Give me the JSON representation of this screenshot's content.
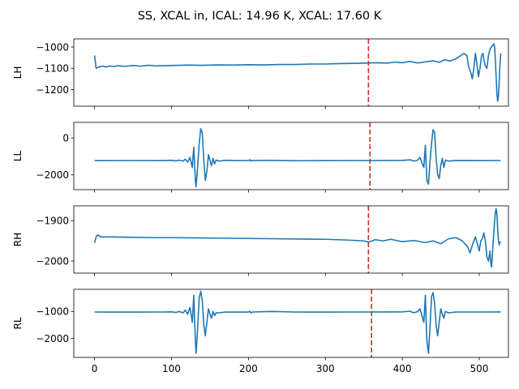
{
  "chart_data": {
    "type": "line",
    "title": "SS, XCAL in, ICAL: 14.96 K, XCAL: 17.60 K",
    "line_color": "#1f77b4",
    "marker_color": "#d62728",
    "xlim": [
      -27,
      538
    ],
    "x_ticks": [
      0,
      100,
      200,
      300,
      400,
      500
    ],
    "x_tick_labels": [
      "0",
      "100",
      "200",
      "300",
      "400",
      "500"
    ],
    "panels": [
      {
        "name": "LH",
        "ylabel": "LH",
        "ylim": [
          -1278,
          -962
        ],
        "y_ticks": [
          -1000,
          -1100,
          -1200
        ],
        "y_tick_labels": [
          "−1000",
          "−1100",
          "−1200"
        ],
        "marker_x": 356,
        "points": [
          [
            0,
            -1040
          ],
          [
            2,
            -1100
          ],
          [
            5,
            -1095
          ],
          [
            10,
            -1090
          ],
          [
            15,
            -1094
          ],
          [
            20,
            -1089
          ],
          [
            25,
            -1092
          ],
          [
            30,
            -1088
          ],
          [
            40,
            -1091
          ],
          [
            50,
            -1087
          ],
          [
            60,
            -1090
          ],
          [
            70,
            -1086
          ],
          [
            80,
            -1089
          ],
          [
            100,
            -1087
          ],
          [
            120,
            -1085
          ],
          [
            140,
            -1086
          ],
          [
            160,
            -1084
          ],
          [
            180,
            -1085
          ],
          [
            200,
            -1083
          ],
          [
            220,
            -1084
          ],
          [
            240,
            -1082
          ],
          [
            260,
            -1082
          ],
          [
            280,
            -1080
          ],
          [
            300,
            -1080
          ],
          [
            320,
            -1078
          ],
          [
            340,
            -1077
          ],
          [
            356,
            -1075
          ],
          [
            370,
            -1074
          ],
          [
            380,
            -1076
          ],
          [
            390,
            -1071
          ],
          [
            400,
            -1074
          ],
          [
            410,
            -1068
          ],
          [
            420,
            -1075
          ],
          [
            430,
            -1070
          ],
          [
            440,
            -1065
          ],
          [
            448,
            -1072
          ],
          [
            455,
            -1060
          ],
          [
            462,
            -1066
          ],
          [
            470,
            -1055
          ],
          [
            476,
            -1040
          ],
          [
            480,
            -1030
          ],
          [
            484,
            -1040
          ],
          [
            486,
            -1090
          ],
          [
            489,
            -1120
          ],
          [
            491,
            -1150
          ],
          [
            493,
            -1100
          ],
          [
            495,
            -1030
          ],
          [
            497,
            -1080
          ],
          [
            499,
            -1140
          ],
          [
            501,
            -1100
          ],
          [
            503,
            -1040
          ],
          [
            505,
            -1030
          ],
          [
            506,
            -1060
          ],
          [
            508,
            -1090
          ],
          [
            510,
            -1100
          ],
          [
            512,
            -1040
          ],
          [
            514,
            -1010
          ],
          [
            516,
            -1000
          ],
          [
            518,
            -990
          ],
          [
            519,
            -985
          ],
          [
            520,
            -1000
          ],
          [
            521,
            -1060
          ],
          [
            522,
            -1140
          ],
          [
            523,
            -1220
          ],
          [
            524,
            -1255
          ],
          [
            525,
            -1230
          ],
          [
            526,
            -1160
          ],
          [
            527,
            -1080
          ],
          [
            528,
            -1030
          ]
        ]
      },
      {
        "name": "LL",
        "ylabel": "LL",
        "ylim": [
          -2800,
          850
        ],
        "y_ticks": [
          0,
          -2000
        ],
        "y_tick_labels": [
          "0",
          "−2000"
        ],
        "marker_x": 358,
        "points": [
          [
            0,
            -1225
          ],
          [
            50,
            -1222
          ],
          [
            90,
            -1225
          ],
          [
            100,
            -1210
          ],
          [
            106,
            -1240
          ],
          [
            110,
            -1200
          ],
          [
            115,
            -1250
          ],
          [
            118,
            -1150
          ],
          [
            121,
            -1300
          ],
          [
            124,
            -1050
          ],
          [
            126,
            -1400
          ],
          [
            127,
            -1600
          ],
          [
            128,
            -1000
          ],
          [
            129,
            -500
          ],
          [
            130,
            -1400
          ],
          [
            131,
            -2300
          ],
          [
            132,
            -2650
          ],
          [
            134,
            -1500
          ],
          [
            136,
            -300
          ],
          [
            138,
            500
          ],
          [
            140,
            300
          ],
          [
            142,
            -1200
          ],
          [
            144,
            -2300
          ],
          [
            146,
            -1800
          ],
          [
            148,
            -900
          ],
          [
            150,
            -1200
          ],
          [
            152,
            -1500
          ],
          [
            154,
            -1100
          ],
          [
            156,
            -1400
          ],
          [
            158,
            -1200
          ],
          [
            162,
            -1250
          ],
          [
            170,
            -1210
          ],
          [
            185,
            -1225
          ],
          [
            200,
            -1220
          ],
          [
            202,
            -1180
          ],
          [
            203,
            -1250
          ],
          [
            205,
            -1220
          ],
          [
            230,
            -1215
          ],
          [
            260,
            -1230
          ],
          [
            300,
            -1225
          ],
          [
            340,
            -1222
          ],
          [
            380,
            -1220
          ],
          [
            400,
            -1215
          ],
          [
            410,
            -1180
          ],
          [
            415,
            -1250
          ],
          [
            420,
            -1200
          ],
          [
            423,
            -1050
          ],
          [
            426,
            -1400
          ],
          [
            428,
            -1600
          ],
          [
            429,
            -1000
          ],
          [
            430,
            -400
          ],
          [
            431,
            -1400
          ],
          [
            432,
            -2300
          ],
          [
            434,
            -2500
          ],
          [
            436,
            -1300
          ],
          [
            438,
            -300
          ],
          [
            440,
            450
          ],
          [
            442,
            300
          ],
          [
            444,
            -1100
          ],
          [
            446,
            -2000
          ],
          [
            448,
            -2200
          ],
          [
            450,
            -1500
          ],
          [
            452,
            -1100
          ],
          [
            454,
            -1600
          ],
          [
            456,
            -1200
          ],
          [
            460,
            -1250
          ],
          [
            470,
            -1220
          ],
          [
            500,
            -1225
          ],
          [
            528,
            -1222
          ]
        ]
      },
      {
        "name": "RH",
        "ylabel": "RH",
        "ylim": [
          -2030,
          -1863
        ],
        "y_ticks": [
          -1900,
          -2000
        ],
        "y_tick_labels": [
          "−1900",
          "−2000"
        ],
        "marker_x": 356,
        "points": [
          [
            0,
            -1955
          ],
          [
            2,
            -1940
          ],
          [
            4,
            -1935
          ],
          [
            8,
            -1940
          ],
          [
            20,
            -1940
          ],
          [
            50,
            -1941
          ],
          [
            80,
            -1942
          ],
          [
            100,
            -1942
          ],
          [
            150,
            -1943
          ],
          [
            200,
            -1944
          ],
          [
            250,
            -1945
          ],
          [
            300,
            -1946
          ],
          [
            330,
            -1948
          ],
          [
            350,
            -1950
          ],
          [
            356,
            -1953
          ],
          [
            365,
            -1947
          ],
          [
            375,
            -1950
          ],
          [
            385,
            -1946
          ],
          [
            400,
            -1952
          ],
          [
            415,
            -1949
          ],
          [
            430,
            -1954
          ],
          [
            440,
            -1950
          ],
          [
            450,
            -1957
          ],
          [
            460,
            -1945
          ],
          [
            470,
            -1942
          ],
          [
            478,
            -1950
          ],
          [
            485,
            -1965
          ],
          [
            488,
            -1980
          ],
          [
            492,
            -1955
          ],
          [
            495,
            -1940
          ],
          [
            498,
            -1960
          ],
          [
            500,
            -1975
          ],
          [
            502,
            -1950
          ],
          [
            504,
            -1945
          ],
          [
            506,
            -1930
          ],
          [
            508,
            -1950
          ],
          [
            510,
            -1990
          ],
          [
            512,
            -2000
          ],
          [
            514,
            -1975
          ],
          [
            515,
            -2005
          ],
          [
            516,
            -2015
          ],
          [
            517,
            -1990
          ],
          [
            518,
            -1955
          ],
          [
            519,
            -1930
          ],
          [
            520,
            -1900
          ],
          [
            521,
            -1880
          ],
          [
            522,
            -1870
          ],
          [
            523,
            -1885
          ],
          [
            524,
            -1920
          ],
          [
            525,
            -1950
          ],
          [
            526,
            -1960
          ],
          [
            527,
            -1953
          ],
          [
            528,
            -1952
          ]
        ]
      },
      {
        "name": "RL",
        "ylabel": "RL",
        "ylim": [
          -2700,
          -180
        ],
        "y_ticks": [
          -1000,
          -2000
        ],
        "y_tick_labels": [
          "−1000",
          "−2000"
        ],
        "marker_x": 360,
        "points": [
          [
            0,
            -1020
          ],
          [
            50,
            -1022
          ],
          [
            90,
            -1020
          ],
          [
            100,
            -1015
          ],
          [
            106,
            -1035
          ],
          [
            110,
            -1000
          ],
          [
            115,
            -1050
          ],
          [
            118,
            -950
          ],
          [
            121,
            -1100
          ],
          [
            124,
            -850
          ],
          [
            126,
            -1200
          ],
          [
            127,
            -1400
          ],
          [
            128,
            -900
          ],
          [
            129,
            -400
          ],
          [
            130,
            -1300
          ],
          [
            131,
            -2100
          ],
          [
            132,
            -2550
          ],
          [
            134,
            -1600
          ],
          [
            136,
            -500
          ],
          [
            138,
            -250
          ],
          [
            140,
            -600
          ],
          [
            142,
            -1500
          ],
          [
            144,
            -1900
          ],
          [
            146,
            -1400
          ],
          [
            148,
            -900
          ],
          [
            150,
            -1100
          ],
          [
            152,
            -1250
          ],
          [
            154,
            -1000
          ],
          [
            156,
            -1150
          ],
          [
            158,
            -1050
          ],
          [
            162,
            -1050
          ],
          [
            170,
            -1020
          ],
          [
            200,
            -1022
          ],
          [
            202,
            -990
          ],
          [
            203,
            -1060
          ],
          [
            205,
            -1020
          ],
          [
            230,
            -1000
          ],
          [
            260,
            -1020
          ],
          [
            300,
            -1022
          ],
          [
            340,
            -1020
          ],
          [
            380,
            -1018
          ],
          [
            400,
            -1015
          ],
          [
            410,
            -990
          ],
          [
            415,
            -1050
          ],
          [
            420,
            -1000
          ],
          [
            423,
            -900
          ],
          [
            426,
            -1200
          ],
          [
            428,
            -1400
          ],
          [
            429,
            -900
          ],
          [
            430,
            -400
          ],
          [
            431,
            -1300
          ],
          [
            432,
            -2100
          ],
          [
            434,
            -2550
          ],
          [
            436,
            -1600
          ],
          [
            438,
            -450
          ],
          [
            440,
            -300
          ],
          [
            442,
            -700
          ],
          [
            444,
            -1500
          ],
          [
            446,
            -1900
          ],
          [
            448,
            -1400
          ],
          [
            450,
            -900
          ],
          [
            452,
            -1100
          ],
          [
            454,
            -1250
          ],
          [
            456,
            -1000
          ],
          [
            460,
            -1050
          ],
          [
            470,
            -1020
          ],
          [
            500,
            -1020
          ],
          [
            528,
            -1018
          ]
        ]
      }
    ]
  }
}
